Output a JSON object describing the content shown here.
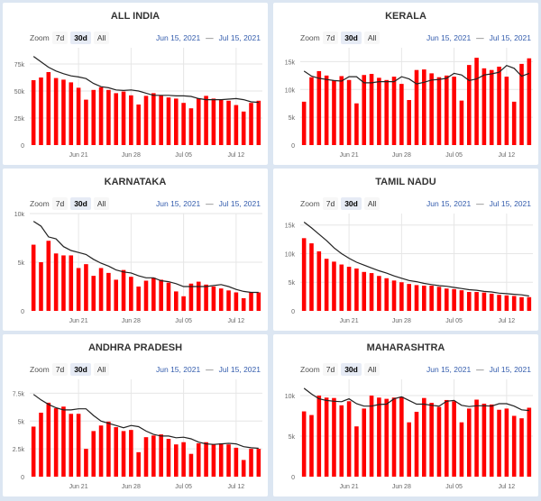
{
  "common": {
    "zoom_label": "Zoom",
    "zoom_options": [
      "7d",
      "30d",
      "All"
    ],
    "zoom_selected": "30d",
    "range_from": "Jun 15, 2021",
    "range_sep": "—",
    "range_to": "Jul 15, 2021"
  },
  "colors": {
    "bar": "#ff0000",
    "line": "#222222",
    "grid": "#e6e6e6",
    "range_text": "#335cad"
  },
  "chart_data": [
    {
      "type": "bar",
      "title": "ALL INDIA",
      "x_start": "2021-06-15",
      "x_end": "2021-07-15",
      "xticks": [
        {
          "index": 6,
          "label": "Jun 21"
        },
        {
          "index": 13,
          "label": "Jun 28"
        },
        {
          "index": 20,
          "label": "Jul 05"
        },
        {
          "index": 27,
          "label": "Jul 12"
        }
      ],
      "yticks": [
        {
          "v": 0,
          "label": "0"
        },
        {
          "v": 25000,
          "label": "25k"
        },
        {
          "v": 50000,
          "label": "50k"
        },
        {
          "v": 75000,
          "label": "75k"
        }
      ],
      "ylim": [
        0,
        90000
      ],
      "values": [
        60000,
        62500,
        67500,
        62000,
        60500,
        58000,
        53000,
        42000,
        51000,
        53500,
        51000,
        48000,
        49500,
        46000,
        37500,
        45500,
        48000,
        46000,
        44000,
        43000,
        39000,
        34000,
        43000,
        45500,
        43000,
        42500,
        41000,
        37000,
        31000,
        39000,
        41000
      ],
      "avg": [
        82000,
        77000,
        72000,
        68500,
        66000,
        64000,
        63000,
        61500,
        57000,
        54000,
        53000,
        51000,
        50500,
        51000,
        50000,
        48000,
        46000,
        46000,
        46000,
        45500,
        45500,
        45000,
        43000,
        42000,
        42000,
        42000,
        42500,
        43000,
        42000,
        40000,
        39500
      ]
    },
    {
      "type": "bar",
      "title": "KERALA",
      "x_start": "2021-06-15",
      "x_end": "2021-07-15",
      "xticks": [
        {
          "index": 6,
          "label": "Jun 21"
        },
        {
          "index": 13,
          "label": "Jun 28"
        },
        {
          "index": 20,
          "label": "Jul 05"
        },
        {
          "index": 27,
          "label": "Jul 12"
        }
      ],
      "yticks": [
        {
          "v": 0,
          "label": "0"
        },
        {
          "v": 5000,
          "label": "5k"
        },
        {
          "v": 10000,
          "label": "10k"
        },
        {
          "v": 15000,
          "label": "15k"
        }
      ],
      "ylim": [
        0,
        17500
      ],
      "values": [
        7800,
        12200,
        13300,
        12500,
        11600,
        12400,
        11700,
        7500,
        12600,
        12800,
        12100,
        11700,
        12300,
        11000,
        8100,
        13500,
        13600,
        12900,
        12200,
        12500,
        12300,
        8000,
        14400,
        15700,
        13800,
        13500,
        14100,
        12300,
        7800,
        14600,
        15600
      ],
      "avg": [
        13300,
        12400,
        12000,
        11800,
        11600,
        11500,
        12300,
        12300,
        11200,
        11200,
        11400,
        11400,
        11400,
        12300,
        11900,
        11000,
        11300,
        11700,
        11800,
        12000,
        12900,
        12600,
        11600,
        11900,
        12600,
        12800,
        13100,
        14300,
        13800,
        12400,
        12900
      ]
    },
    {
      "type": "bar",
      "title": "KARNATAKA",
      "x_start": "2021-06-15",
      "x_end": "2021-07-15",
      "xticks": [
        {
          "index": 6,
          "label": "Jun 21"
        },
        {
          "index": 13,
          "label": "Jun 28"
        },
        {
          "index": 20,
          "label": "Jul 05"
        },
        {
          "index": 27,
          "label": "Jul 12"
        }
      ],
      "yticks": [
        {
          "v": 0,
          "label": "0"
        },
        {
          "v": 5000,
          "label": "5k"
        },
        {
          "v": 10000,
          "label": "10k"
        }
      ],
      "ylim": [
        0,
        10000
      ],
      "values": [
        6800,
        5000,
        7200,
        5900,
        5700,
        5700,
        4400,
        4800,
        3600,
        4400,
        3900,
        3200,
        4200,
        3500,
        2500,
        3100,
        3400,
        3200,
        2900,
        2000,
        1500,
        2800,
        3000,
        2700,
        2500,
        2300,
        2100,
        1900,
        1300,
        1900,
        1900
      ],
      "avg": [
        9200,
        8700,
        7600,
        7400,
        6600,
        6200,
        6000,
        5800,
        5300,
        4900,
        4600,
        4200,
        4000,
        3900,
        3600,
        3400,
        3400,
        3100,
        3000,
        2800,
        2500,
        2500,
        2500,
        2500,
        2600,
        2700,
        2500,
        2200,
        2000,
        1900,
        1900
      ]
    },
    {
      "type": "bar",
      "title": "TAMIL NADU",
      "x_start": "2021-06-15",
      "x_end": "2021-07-15",
      "xticks": [
        {
          "index": 6,
          "label": "Jun 21"
        },
        {
          "index": 13,
          "label": "Jun 28"
        },
        {
          "index": 20,
          "label": "Jul 05"
        },
        {
          "index": 27,
          "label": "Jul 12"
        }
      ],
      "yticks": [
        {
          "v": 0,
          "label": "0"
        },
        {
          "v": 5000,
          "label": "5k"
        },
        {
          "v": 10000,
          "label": "10k"
        },
        {
          "v": 15000,
          "label": "15k"
        }
      ],
      "ylim": [
        0,
        17000
      ],
      "values": [
        12700,
        11800,
        10400,
        9100,
        8600,
        8100,
        7700,
        7400,
        6800,
        6600,
        6100,
        5700,
        5300,
        5000,
        4700,
        4500,
        4400,
        4400,
        4200,
        3900,
        3800,
        3600,
        3300,
        3300,
        3200,
        3000,
        2800,
        2700,
        2600,
        2400,
        2400
      ],
      "avg": [
        15500,
        14500,
        13400,
        12300,
        11000,
        10000,
        9200,
        8500,
        8000,
        7500,
        7000,
        6600,
        6100,
        5700,
        5300,
        5100,
        4800,
        4600,
        4400,
        4300,
        4100,
        3900,
        3700,
        3600,
        3400,
        3300,
        3100,
        3000,
        2900,
        2800,
        2600
      ]
    },
    {
      "type": "bar",
      "title": "ANDHRA PRADESH",
      "x_start": "2021-06-15",
      "x_end": "2021-07-15",
      "xticks": [
        {
          "index": 6,
          "label": "Jun 21"
        },
        {
          "index": 13,
          "label": "Jun 28"
        },
        {
          "index": 20,
          "label": "Jul 05"
        },
        {
          "index": 27,
          "label": "Jul 12"
        }
      ],
      "yticks": [
        {
          "v": 0,
          "label": "0"
        },
        {
          "v": 2500,
          "label": "2.5k"
        },
        {
          "v": 5000,
          "label": "5k"
        },
        {
          "v": 7500,
          "label": "7.5k"
        }
      ],
      "ylim": [
        0,
        8750
      ],
      "values": [
        4500,
        5750,
        6650,
        6150,
        6300,
        5650,
        5650,
        2500,
        4100,
        4600,
        4950,
        4450,
        4100,
        4200,
        2200,
        3550,
        3700,
        3800,
        3400,
        2900,
        3100,
        2050,
        3000,
        3100,
        2900,
        3000,
        2900,
        2600,
        1500,
        2500,
        2500
      ],
      "avg": [
        7400,
        6900,
        6500,
        6200,
        6000,
        6000,
        6100,
        6100,
        5500,
        5000,
        4800,
        4600,
        4400,
        4600,
        4500,
        4100,
        3800,
        3650,
        3650,
        3500,
        3550,
        3400,
        3100,
        2950,
        2900,
        2950,
        3000,
        2950,
        2700,
        2600,
        2550
      ]
    },
    {
      "type": "bar",
      "title": "MAHARASHTRA",
      "x_start": "2021-06-15",
      "x_end": "2021-07-15",
      "xticks": [
        {
          "index": 6,
          "label": "Jun 21"
        },
        {
          "index": 13,
          "label": "Jun 28"
        },
        {
          "index": 20,
          "label": "Jul 05"
        },
        {
          "index": 27,
          "label": "Jul 12"
        }
      ],
      "yticks": [
        {
          "v": 0,
          "label": "0"
        },
        {
          "v": 5000,
          "label": "5k"
        },
        {
          "v": 10000,
          "label": "10k"
        }
      ],
      "ylim": [
        0,
        12000
      ],
      "values": [
        8050,
        7600,
        10000,
        9750,
        9700,
        8800,
        9300,
        6200,
        8400,
        10000,
        9750,
        9600,
        9750,
        9850,
        6700,
        8000,
        9700,
        9100,
        8600,
        9450,
        9300,
        6700,
        8400,
        9500,
        9000,
        8900,
        8250,
        8400,
        7500,
        7200,
        8500
      ],
      "avg": [
        10900,
        10200,
        9600,
        9400,
        9300,
        9250,
        9600,
        9000,
        8700,
        8700,
        8900,
        8950,
        9600,
        9850,
        9400,
        8950,
        8950,
        8800,
        8700,
        9300,
        9400,
        8800,
        8650,
        8750,
        8750,
        8700,
        9000,
        9000,
        8700,
        8250,
        8150
      ]
    }
  ]
}
